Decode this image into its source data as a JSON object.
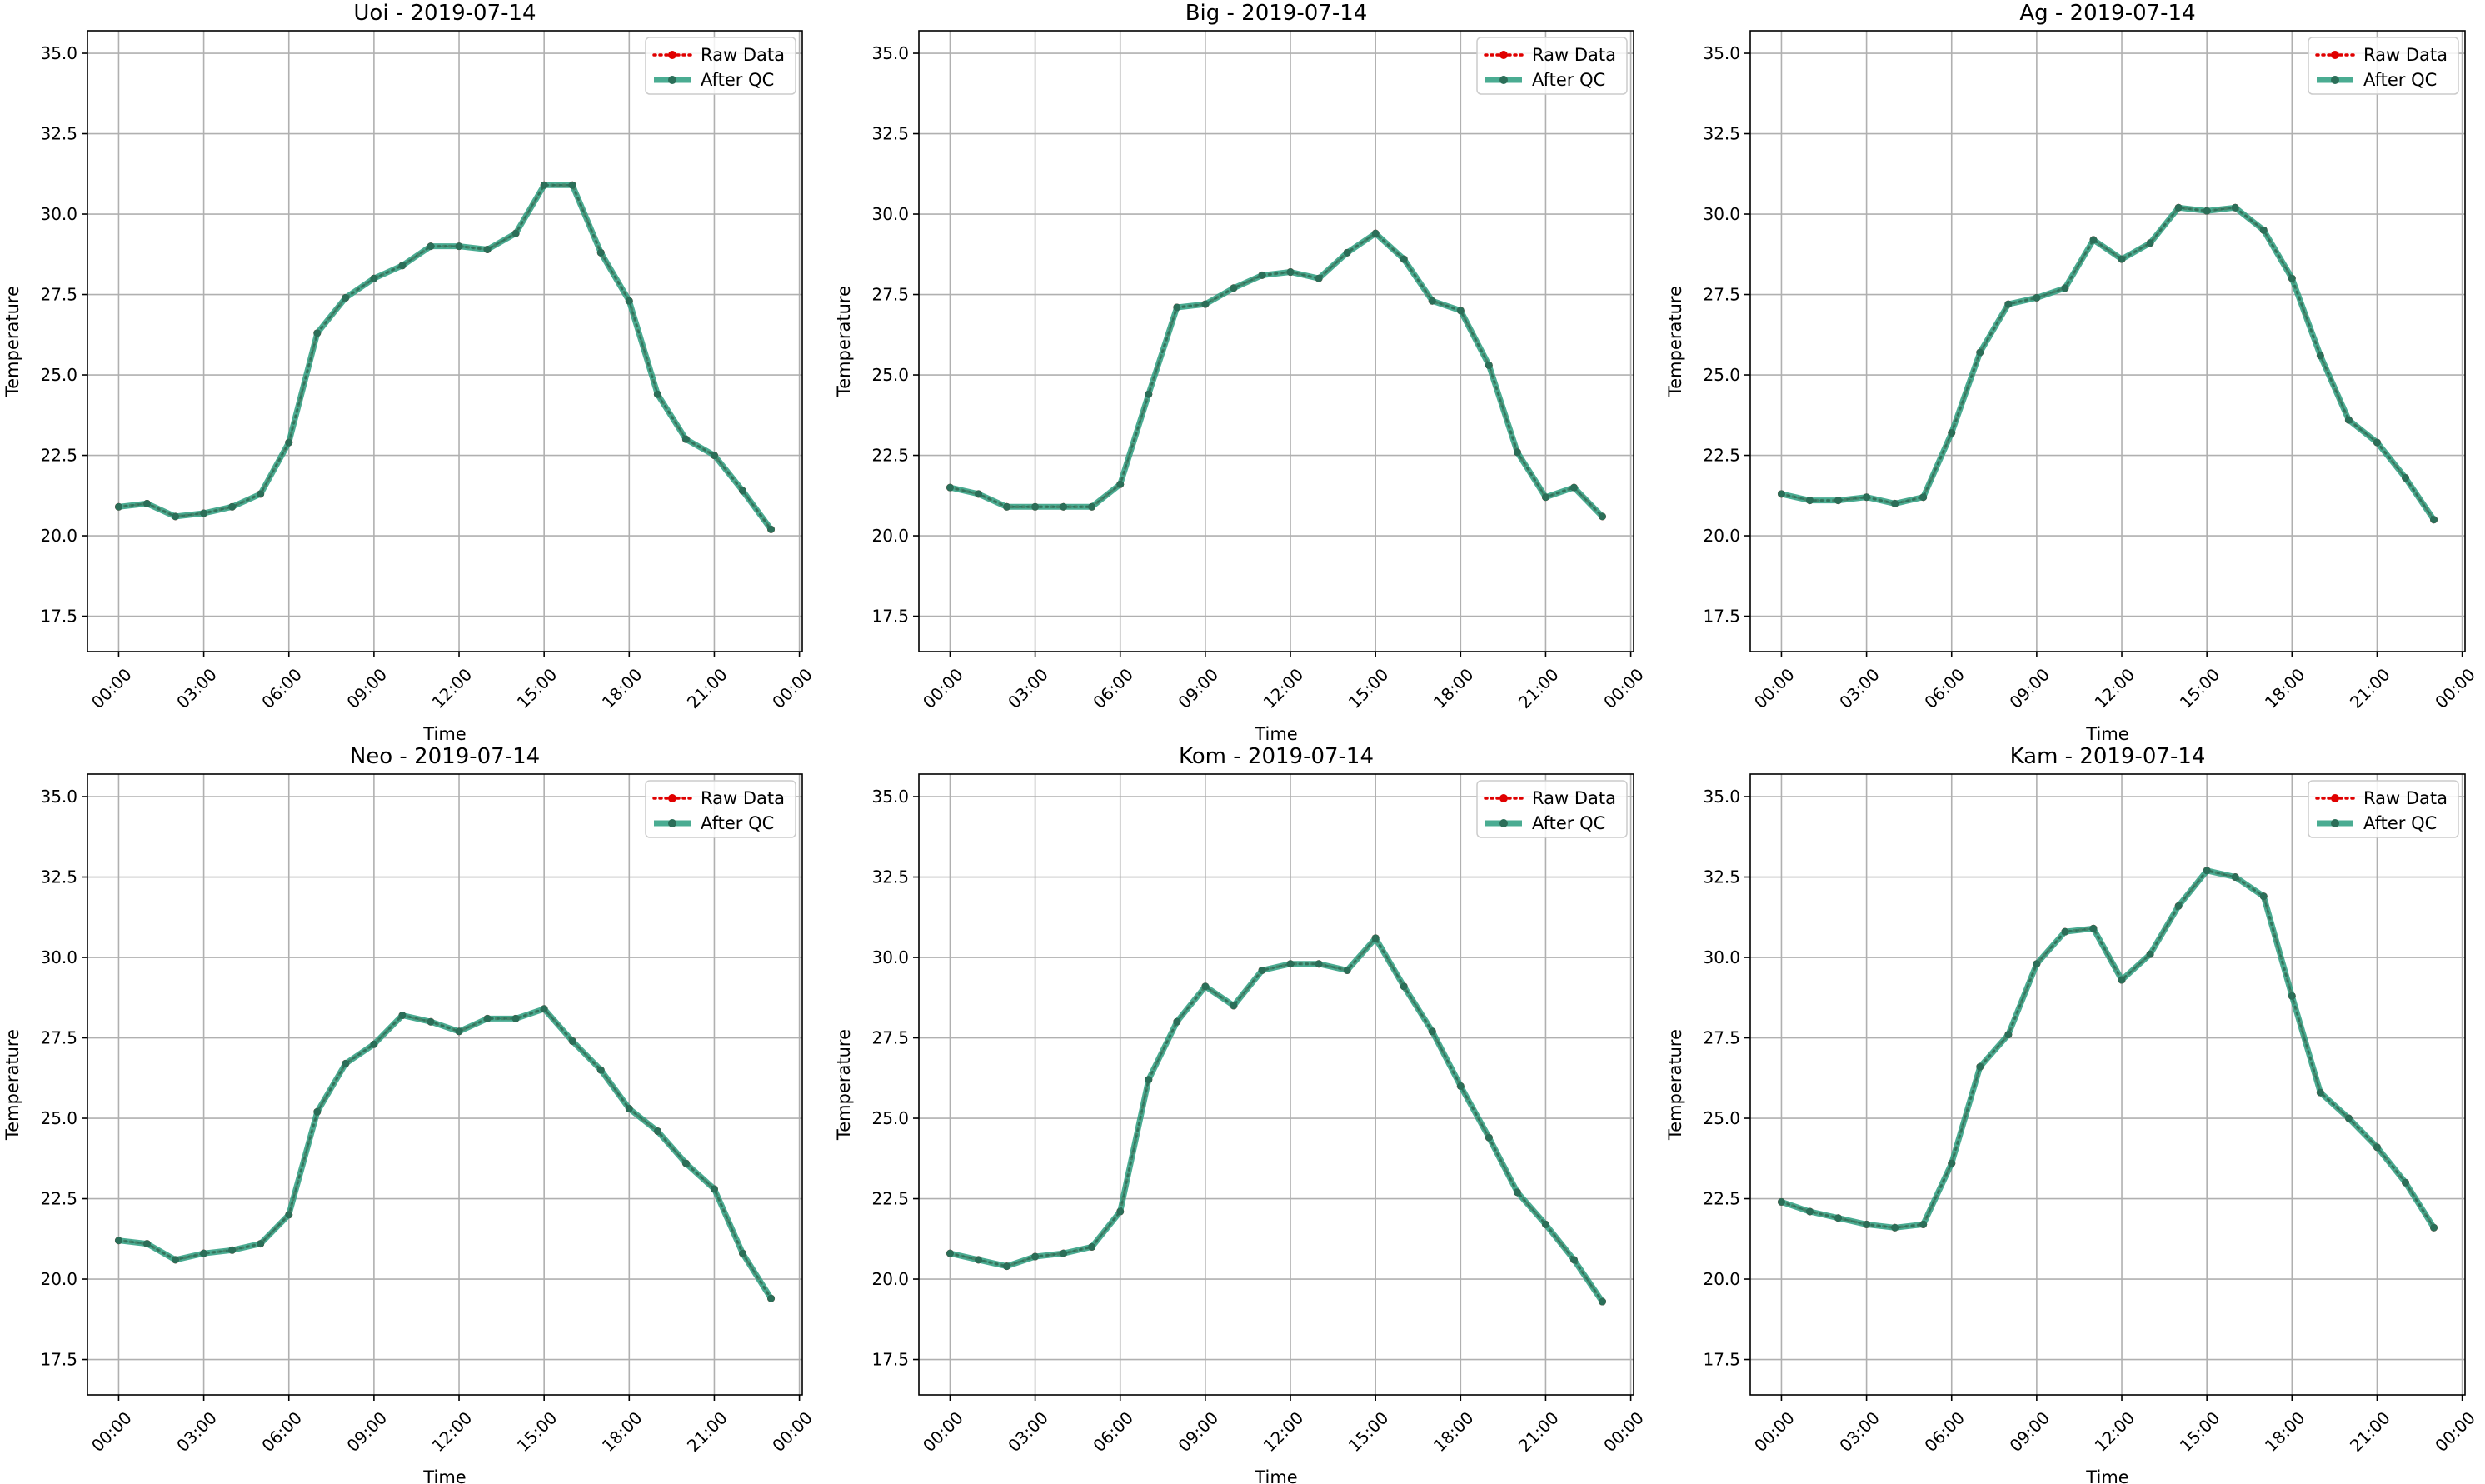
{
  "figure": {
    "colors": {
      "raw": "#e00000",
      "qc": "#2a9d7f",
      "qc_points": "#2b6e58",
      "grid": "#b0b0b0",
      "axes": "#000000"
    }
  },
  "legend": {
    "raw_label": "Raw Data",
    "qc_label": "After QC"
  },
  "chart_data": [
    {
      "type": "line",
      "title": "Uoi - 2019-07-14",
      "xlabel": "Time",
      "ylabel": "Temperature",
      "xticks": [
        "00:00",
        "03:00",
        "06:00",
        "09:00",
        "12:00",
        "15:00",
        "18:00",
        "21:00",
        "00:00"
      ],
      "yticks": [
        "17.5",
        "20.0",
        "22.5",
        "25.0",
        "27.5",
        "30.0",
        "32.5",
        "35.0"
      ],
      "ylim": [
        16.4,
        35.7
      ],
      "xlim": [
        -1.1,
        24.1
      ],
      "legend": "top-right",
      "grid": true,
      "x": [
        "00:00",
        "01:00",
        "02:00",
        "03:00",
        "04:00",
        "05:00",
        "06:00",
        "07:00",
        "08:00",
        "09:00",
        "10:00",
        "11:00",
        "12:00",
        "13:00",
        "14:00",
        "15:00",
        "16:00",
        "17:00",
        "18:00",
        "19:00",
        "20:00",
        "21:00",
        "22:00",
        "23:00"
      ],
      "series": [
        {
          "name": "Raw Data",
          "values": [
            20.9,
            21.0,
            20.6,
            20.7,
            20.9,
            21.3,
            22.9,
            26.3,
            27.4,
            28.0,
            28.4,
            29.0,
            29.0,
            28.9,
            29.4,
            30.9,
            30.9,
            28.8,
            27.3,
            24.4,
            23.0,
            22.5,
            21.4,
            20.2
          ]
        },
        {
          "name": "After QC",
          "values": [
            20.9,
            21.0,
            20.6,
            20.7,
            20.9,
            21.3,
            22.9,
            26.3,
            27.4,
            28.0,
            28.4,
            29.0,
            29.0,
            28.9,
            29.4,
            30.9,
            30.9,
            28.8,
            27.3,
            24.4,
            23.0,
            22.5,
            21.4,
            20.2
          ]
        }
      ]
    },
    {
      "type": "line",
      "title": "Big - 2019-07-14",
      "xlabel": "Time",
      "ylabel": "Temperature",
      "xticks": [
        "00:00",
        "03:00",
        "06:00",
        "09:00",
        "12:00",
        "15:00",
        "18:00",
        "21:00",
        "00:00"
      ],
      "yticks": [
        "17.5",
        "20.0",
        "22.5",
        "25.0",
        "27.5",
        "30.0",
        "32.5",
        "35.0"
      ],
      "ylim": [
        16.4,
        35.7
      ],
      "xlim": [
        -1.1,
        24.1
      ],
      "legend": "top-right",
      "grid": true,
      "x": [
        "00:00",
        "01:00",
        "02:00",
        "03:00",
        "04:00",
        "05:00",
        "06:00",
        "07:00",
        "08:00",
        "09:00",
        "10:00",
        "11:00",
        "12:00",
        "13:00",
        "14:00",
        "15:00",
        "16:00",
        "17:00",
        "18:00",
        "19:00",
        "20:00",
        "21:00",
        "22:00",
        "23:00"
      ],
      "series": [
        {
          "name": "Raw Data",
          "values": [
            21.5,
            21.3,
            20.9,
            20.9,
            20.9,
            20.9,
            21.6,
            24.4,
            27.1,
            27.2,
            27.7,
            28.1,
            28.2,
            28.0,
            28.8,
            29.4,
            28.6,
            27.3,
            27.0,
            25.3,
            22.6,
            21.2,
            21.5,
            20.6
          ]
        },
        {
          "name": "After QC",
          "values": [
            21.5,
            21.3,
            20.9,
            20.9,
            20.9,
            20.9,
            21.6,
            24.4,
            27.1,
            27.2,
            27.7,
            28.1,
            28.2,
            28.0,
            28.8,
            29.4,
            28.6,
            27.3,
            27.0,
            25.3,
            22.6,
            21.2,
            21.5,
            20.6
          ]
        }
      ]
    },
    {
      "type": "line",
      "title": "Ag - 2019-07-14",
      "xlabel": "Time",
      "ylabel": "Temperature",
      "xticks": [
        "00:00",
        "03:00",
        "06:00",
        "09:00",
        "12:00",
        "15:00",
        "18:00",
        "21:00",
        "00:00"
      ],
      "yticks": [
        "17.5",
        "20.0",
        "22.5",
        "25.0",
        "27.5",
        "30.0",
        "32.5",
        "35.0"
      ],
      "ylim": [
        16.4,
        35.7
      ],
      "xlim": [
        -1.1,
        24.1
      ],
      "legend": "top-right",
      "grid": true,
      "x": [
        "00:00",
        "01:00",
        "02:00",
        "03:00",
        "04:00",
        "05:00",
        "06:00",
        "07:00",
        "08:00",
        "09:00",
        "10:00",
        "11:00",
        "12:00",
        "13:00",
        "14:00",
        "15:00",
        "16:00",
        "17:00",
        "18:00",
        "19:00",
        "20:00",
        "21:00",
        "22:00",
        "23:00"
      ],
      "series": [
        {
          "name": "Raw Data",
          "values": [
            21.3,
            21.1,
            21.1,
            21.2,
            21.0,
            21.2,
            23.2,
            25.7,
            27.2,
            27.4,
            27.7,
            29.2,
            28.6,
            29.1,
            30.2,
            30.1,
            30.2,
            29.5,
            28.0,
            25.6,
            23.6,
            22.9,
            21.8,
            20.5
          ]
        },
        {
          "name": "After QC",
          "values": [
            21.3,
            21.1,
            21.1,
            21.2,
            21.0,
            21.2,
            23.2,
            25.7,
            27.2,
            27.4,
            27.7,
            29.2,
            28.6,
            29.1,
            30.2,
            30.1,
            30.2,
            29.5,
            28.0,
            25.6,
            23.6,
            22.9,
            21.8,
            20.5
          ]
        }
      ]
    },
    {
      "type": "line",
      "title": "Neo - 2019-07-14",
      "xlabel": "Time",
      "ylabel": "Temperature",
      "xticks": [
        "00:00",
        "03:00",
        "06:00",
        "09:00",
        "12:00",
        "15:00",
        "18:00",
        "21:00",
        "00:00"
      ],
      "yticks": [
        "17.5",
        "20.0",
        "22.5",
        "25.0",
        "27.5",
        "30.0",
        "32.5",
        "35.0"
      ],
      "ylim": [
        16.4,
        35.7
      ],
      "xlim": [
        -1.1,
        24.1
      ],
      "legend": "top-right",
      "grid": true,
      "x": [
        "00:00",
        "01:00",
        "02:00",
        "03:00",
        "04:00",
        "05:00",
        "06:00",
        "07:00",
        "08:00",
        "09:00",
        "10:00",
        "11:00",
        "12:00",
        "13:00",
        "14:00",
        "15:00",
        "16:00",
        "17:00",
        "18:00",
        "19:00",
        "20:00",
        "21:00",
        "22:00",
        "23:00"
      ],
      "series": [
        {
          "name": "Raw Data",
          "values": [
            21.2,
            21.1,
            20.6,
            20.8,
            20.9,
            21.1,
            22.0,
            25.2,
            26.7,
            27.3,
            28.2,
            28.0,
            27.7,
            28.1,
            28.1,
            28.4,
            27.4,
            26.5,
            25.3,
            24.6,
            23.6,
            22.8,
            20.8,
            19.4
          ]
        },
        {
          "name": "After QC",
          "values": [
            21.2,
            21.1,
            20.6,
            20.8,
            20.9,
            21.1,
            22.0,
            25.2,
            26.7,
            27.3,
            28.2,
            28.0,
            27.7,
            28.1,
            28.1,
            28.4,
            27.4,
            26.5,
            25.3,
            24.6,
            23.6,
            22.8,
            20.8,
            19.4
          ]
        }
      ]
    },
    {
      "type": "line",
      "title": "Kom - 2019-07-14",
      "xlabel": "Time",
      "ylabel": "Temperature",
      "xticks": [
        "00:00",
        "03:00",
        "06:00",
        "09:00",
        "12:00",
        "15:00",
        "18:00",
        "21:00",
        "00:00"
      ],
      "yticks": [
        "17.5",
        "20.0",
        "22.5",
        "25.0",
        "27.5",
        "30.0",
        "32.5",
        "35.0"
      ],
      "ylim": [
        16.4,
        35.7
      ],
      "xlim": [
        -1.1,
        24.1
      ],
      "legend": "top-right",
      "grid": true,
      "x": [
        "00:00",
        "01:00",
        "02:00",
        "03:00",
        "04:00",
        "05:00",
        "06:00",
        "07:00",
        "08:00",
        "09:00",
        "10:00",
        "11:00",
        "12:00",
        "13:00",
        "14:00",
        "15:00",
        "16:00",
        "17:00",
        "18:00",
        "19:00",
        "20:00",
        "21:00",
        "22:00",
        "23:00"
      ],
      "series": [
        {
          "name": "Raw Data",
          "values": [
            20.8,
            20.6,
            20.4,
            20.7,
            20.8,
            21.0,
            22.1,
            26.2,
            28.0,
            29.1,
            28.5,
            29.6,
            29.8,
            29.8,
            29.6,
            30.6,
            29.1,
            27.7,
            26.0,
            24.4,
            22.7,
            21.7,
            20.6,
            19.3
          ]
        },
        {
          "name": "After QC",
          "values": [
            20.8,
            20.6,
            20.4,
            20.7,
            20.8,
            21.0,
            22.1,
            26.2,
            28.0,
            29.1,
            28.5,
            29.6,
            29.8,
            29.8,
            29.6,
            30.6,
            29.1,
            27.7,
            26.0,
            24.4,
            22.7,
            21.7,
            20.6,
            19.3
          ]
        }
      ]
    },
    {
      "type": "line",
      "title": "Kam - 2019-07-14",
      "xlabel": "Time",
      "ylabel": "Temperature",
      "xticks": [
        "00:00",
        "03:00",
        "06:00",
        "09:00",
        "12:00",
        "15:00",
        "18:00",
        "21:00",
        "00:00"
      ],
      "yticks": [
        "17.5",
        "20.0",
        "22.5",
        "25.0",
        "27.5",
        "30.0",
        "32.5",
        "35.0"
      ],
      "ylim": [
        16.4,
        35.7
      ],
      "xlim": [
        -1.1,
        24.1
      ],
      "legend": "top-right",
      "grid": true,
      "x": [
        "00:00",
        "01:00",
        "02:00",
        "03:00",
        "04:00",
        "05:00",
        "06:00",
        "07:00",
        "08:00",
        "09:00",
        "10:00",
        "11:00",
        "12:00",
        "13:00",
        "14:00",
        "15:00",
        "16:00",
        "17:00",
        "18:00",
        "19:00",
        "20:00",
        "21:00",
        "22:00",
        "23:00"
      ],
      "series": [
        {
          "name": "Raw Data",
          "values": [
            22.4,
            22.1,
            21.9,
            21.7,
            21.6,
            21.7,
            23.6,
            26.6,
            27.6,
            29.8,
            30.8,
            30.9,
            29.3,
            30.1,
            31.6,
            32.7,
            32.5,
            31.9,
            28.8,
            25.8,
            25.0,
            24.1,
            23.0,
            21.6
          ]
        },
        {
          "name": "After QC",
          "values": [
            22.4,
            22.1,
            21.9,
            21.7,
            21.6,
            21.7,
            23.6,
            26.6,
            27.6,
            29.8,
            30.8,
            30.9,
            29.3,
            30.1,
            31.6,
            32.7,
            32.5,
            31.9,
            28.8,
            25.8,
            25.0,
            24.1,
            23.0,
            21.6
          ]
        }
      ]
    }
  ]
}
